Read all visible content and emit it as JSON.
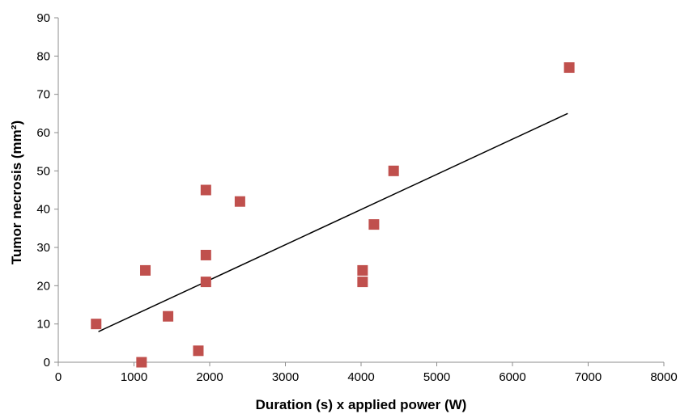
{
  "chart_data": {
    "type": "scatter",
    "xlabel": "Duration (s) x applied power (W)",
    "ylabel": "Tumor necrosis (mm²)",
    "xlim": [
      0,
      8000
    ],
    "ylim": [
      0,
      90
    ],
    "x_ticks": [
      0,
      1000,
      2000,
      3000,
      4000,
      5000,
      6000,
      7000,
      8000
    ],
    "y_ticks": [
      0,
      10,
      20,
      30,
      40,
      50,
      60,
      70,
      80,
      90
    ],
    "grid": false,
    "marker_color": "#c0504d",
    "marker_shape": "square",
    "points": [
      {
        "x": 500,
        "y": 10
      },
      {
        "x": 1100,
        "y": 0
      },
      {
        "x": 1150,
        "y": 24
      },
      {
        "x": 1450,
        "y": 12
      },
      {
        "x": 1850,
        "y": 3
      },
      {
        "x": 1950,
        "y": 45
      },
      {
        "x": 1950,
        "y": 28
      },
      {
        "x": 1950,
        "y": 21
      },
      {
        "x": 2400,
        "y": 42
      },
      {
        "x": 4020,
        "y": 24
      },
      {
        "x": 4020,
        "y": 21
      },
      {
        "x": 4170,
        "y": 36
      },
      {
        "x": 4430,
        "y": 50
      },
      {
        "x": 6750,
        "y": 77
      }
    ],
    "trendline": {
      "type": "linear",
      "color": "#000000",
      "x": [
        530,
        6730
      ],
      "y": [
        8,
        65
      ]
    }
  }
}
